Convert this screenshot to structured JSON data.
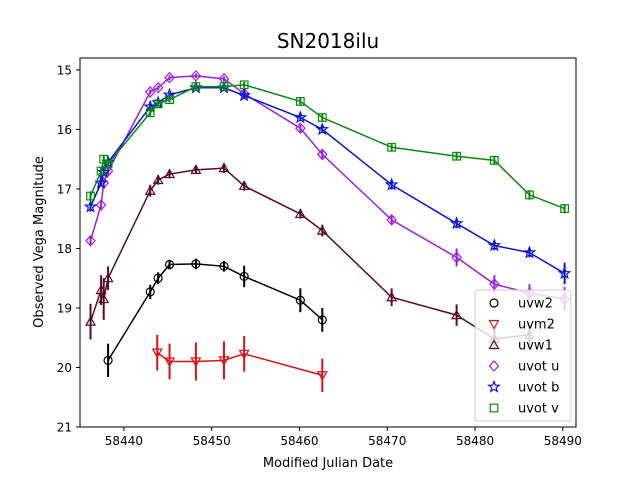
{
  "chart_data": {
    "type": "line",
    "title": "SN2018ilu",
    "xlabel": "Modified Julian Date",
    "ylabel": "Observed Vega Magnitude",
    "xlim": [
      58435,
      58491.5
    ],
    "ylim": [
      21,
      14.8
    ],
    "y_inverted": true,
    "x_ticks": [
      58440,
      58450,
      58460,
      58470,
      58480,
      58490
    ],
    "y_ticks": [
      15,
      16,
      17,
      18,
      19,
      20,
      21
    ],
    "grid": false,
    "legend_position": "lower-right",
    "series": [
      {
        "name": "uvw2",
        "color": "#000000",
        "marker": "circle",
        "points": [
          {
            "x": 58438.2,
            "y": 19.88,
            "err": 0.28
          },
          {
            "x": 58443.0,
            "y": 18.73,
            "err": 0.12
          },
          {
            "x": 58443.9,
            "y": 18.5,
            "err": 0.1
          },
          {
            "x": 58445.2,
            "y": 18.27,
            "err": 0.08
          },
          {
            "x": 58448.2,
            "y": 18.26,
            "err": 0.09
          },
          {
            "x": 58451.4,
            "y": 18.3,
            "err": 0.09
          },
          {
            "x": 58453.7,
            "y": 18.47,
            "err": 0.18
          },
          {
            "x": 58460.1,
            "y": 18.87,
            "err": 0.2
          },
          {
            "x": 58462.6,
            "y": 19.2,
            "err": 0.2
          }
        ]
      },
      {
        "name": "uvm2",
        "color": "#dd1111",
        "marker": "triangle-down",
        "points": [
          {
            "x": 58443.8,
            "y": 19.75,
            "err": 0.3
          },
          {
            "x": 58445.2,
            "y": 19.9,
            "err": 0.3
          },
          {
            "x": 58448.2,
            "y": 19.9,
            "err": 0.32
          },
          {
            "x": 58451.4,
            "y": 19.88,
            "err": 0.32
          },
          {
            "x": 58453.7,
            "y": 19.77,
            "err": 0.3
          },
          {
            "x": 58462.6,
            "y": 20.13,
            "err": 0.28
          }
        ]
      },
      {
        "name": "uvw1",
        "color": "#5a0a2a",
        "marker": "triangle-up",
        "points": [
          {
            "x": 58436.2,
            "y": 19.23,
            "err": 0.3
          },
          {
            "x": 58437.4,
            "y": 18.7,
            "err": 0.25
          },
          {
            "x": 58437.7,
            "y": 18.85,
            "err": 0.35
          },
          {
            "x": 58438.2,
            "y": 18.5,
            "err": 0.2
          },
          {
            "x": 58443.0,
            "y": 17.03,
            "err": 0.1
          },
          {
            "x": 58443.9,
            "y": 16.85,
            "err": 0.08
          },
          {
            "x": 58445.2,
            "y": 16.75,
            "err": 0.07
          },
          {
            "x": 58448.2,
            "y": 16.68,
            "err": 0.07
          },
          {
            "x": 58451.4,
            "y": 16.65,
            "err": 0.08
          },
          {
            "x": 58453.7,
            "y": 16.95,
            "err": 0.08
          },
          {
            "x": 58460.1,
            "y": 17.42,
            "err": 0.08
          },
          {
            "x": 58462.6,
            "y": 17.7,
            "err": 0.1
          },
          {
            "x": 58470.5,
            "y": 18.82,
            "err": 0.15
          },
          {
            "x": 58477.9,
            "y": 19.12,
            "err": 0.18
          },
          {
            "x": 58482.2,
            "y": 19.52,
            "err": 0.2
          },
          {
            "x": 58486.2,
            "y": 19.45,
            "err": 0.2
          }
        ]
      },
      {
        "name": "uvot u",
        "color": "#9b1fe0",
        "marker": "diamond",
        "points": [
          {
            "x": 58436.2,
            "y": 17.87,
            "err": 0.08
          },
          {
            "x": 58437.4,
            "y": 17.27,
            "err": 0.06
          },
          {
            "x": 58437.7,
            "y": 16.9,
            "err": 0.06
          },
          {
            "x": 58438.2,
            "y": 16.7,
            "err": 0.06
          },
          {
            "x": 58443.0,
            "y": 15.37,
            "err": 0.04
          },
          {
            "x": 58443.9,
            "y": 15.3,
            "err": 0.04
          },
          {
            "x": 58445.2,
            "y": 15.13,
            "err": 0.04
          },
          {
            "x": 58448.2,
            "y": 15.1,
            "err": 0.04
          },
          {
            "x": 58451.4,
            "y": 15.15,
            "err": 0.04
          },
          {
            "x": 58453.7,
            "y": 15.4,
            "err": 0.04
          },
          {
            "x": 58460.1,
            "y": 15.98,
            "err": 0.06
          },
          {
            "x": 58462.6,
            "y": 16.42,
            "err": 0.07
          },
          {
            "x": 58470.5,
            "y": 17.52,
            "err": 0.08
          },
          {
            "x": 58477.9,
            "y": 18.15,
            "err": 0.15
          },
          {
            "x": 58482.2,
            "y": 18.6,
            "err": 0.15
          },
          {
            "x": 58486.2,
            "y": 18.75,
            "err": 0.15
          },
          {
            "x": 58490.2,
            "y": 18.85,
            "err": 0.2
          }
        ]
      },
      {
        "name": "uvot b",
        "color": "#0a14d4",
        "marker": "star",
        "points": [
          {
            "x": 58436.2,
            "y": 17.3,
            "err": 0.08
          },
          {
            "x": 58437.4,
            "y": 16.9,
            "err": 0.06
          },
          {
            "x": 58437.7,
            "y": 16.72,
            "err": 0.06
          },
          {
            "x": 58438.2,
            "y": 16.55,
            "err": 0.06
          },
          {
            "x": 58443.0,
            "y": 15.62,
            "err": 0.05
          },
          {
            "x": 58443.9,
            "y": 15.55,
            "err": 0.05
          },
          {
            "x": 58445.2,
            "y": 15.42,
            "err": 0.04
          },
          {
            "x": 58448.2,
            "y": 15.3,
            "err": 0.04
          },
          {
            "x": 58451.4,
            "y": 15.3,
            "err": 0.04
          },
          {
            "x": 58453.7,
            "y": 15.43,
            "err": 0.05
          },
          {
            "x": 58460.1,
            "y": 15.8,
            "err": 0.06
          },
          {
            "x": 58462.6,
            "y": 16.0,
            "err": 0.06
          },
          {
            "x": 58470.5,
            "y": 16.93,
            "err": 0.08
          },
          {
            "x": 58477.9,
            "y": 17.58,
            "err": 0.08
          },
          {
            "x": 58482.2,
            "y": 17.95,
            "err": 0.08
          },
          {
            "x": 58486.2,
            "y": 18.07,
            "err": 0.08
          },
          {
            "x": 58490.2,
            "y": 18.42,
            "err": 0.18
          }
        ]
      },
      {
        "name": "uvot v",
        "color": "#0a8a0a",
        "marker": "square",
        "points": [
          {
            "x": 58436.2,
            "y": 17.12,
            "err": 0.08
          },
          {
            "x": 58437.4,
            "y": 16.7,
            "err": 0.07
          },
          {
            "x": 58437.7,
            "y": 16.5,
            "err": 0.06
          },
          {
            "x": 58438.2,
            "y": 16.58,
            "err": 0.06
          },
          {
            "x": 58443.0,
            "y": 15.72,
            "err": 0.06
          },
          {
            "x": 58443.9,
            "y": 15.57,
            "err": 0.05
          },
          {
            "x": 58445.2,
            "y": 15.5,
            "err": 0.05
          },
          {
            "x": 58448.2,
            "y": 15.28,
            "err": 0.05
          },
          {
            "x": 58451.4,
            "y": 15.28,
            "err": 0.05
          },
          {
            "x": 58453.7,
            "y": 15.25,
            "err": 0.05
          },
          {
            "x": 58460.1,
            "y": 15.53,
            "err": 0.06
          },
          {
            "x": 58462.6,
            "y": 15.8,
            "err": 0.06
          },
          {
            "x": 58470.5,
            "y": 16.3,
            "err": 0.06
          },
          {
            "x": 58477.9,
            "y": 16.45,
            "err": 0.07
          },
          {
            "x": 58482.2,
            "y": 16.52,
            "err": 0.08
          },
          {
            "x": 58486.2,
            "y": 17.1,
            "err": 0.08
          },
          {
            "x": 58490.2,
            "y": 17.33,
            "err": 0.08
          }
        ]
      }
    ]
  }
}
